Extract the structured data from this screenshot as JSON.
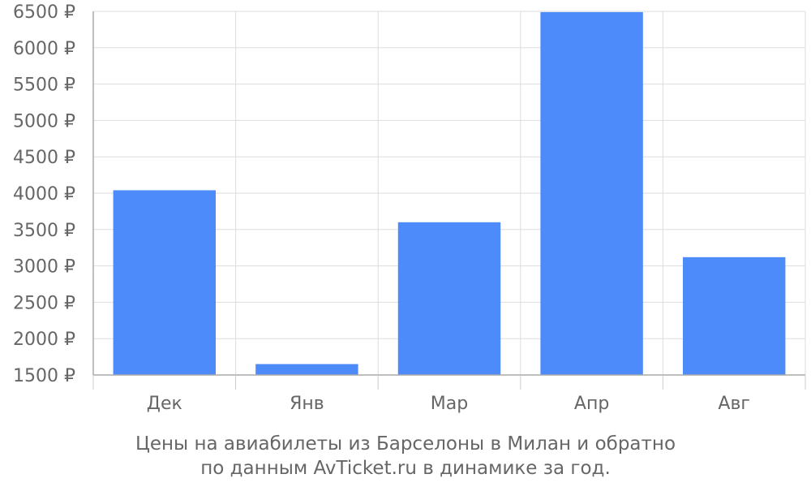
{
  "chart_data": {
    "type": "bar",
    "categories": [
      "Дек",
      "Янв",
      "Мар",
      "Апр",
      "Авг"
    ],
    "values": [
      4040,
      1650,
      3600,
      6490,
      3120
    ],
    "ylim": [
      1500,
      6500
    ],
    "yticks": [
      1500,
      2000,
      2500,
      3000,
      3500,
      4000,
      4500,
      5000,
      5500,
      6000,
      6500
    ],
    "ytick_labels": [
      "1500 ₽",
      "2000 ₽",
      "2500 ₽",
      "3000 ₽",
      "3500 ₽",
      "4000 ₽",
      "4500 ₽",
      "5000 ₽",
      "5500 ₽",
      "6000 ₽",
      "6500 ₽"
    ],
    "grid": true,
    "bar_color": "#4d8afa",
    "caption_line1": "Цены на авиабилеты из Барселоны в Милан и обратно",
    "caption_line2": "по данным AvTicket.ru в динамике за год."
  }
}
